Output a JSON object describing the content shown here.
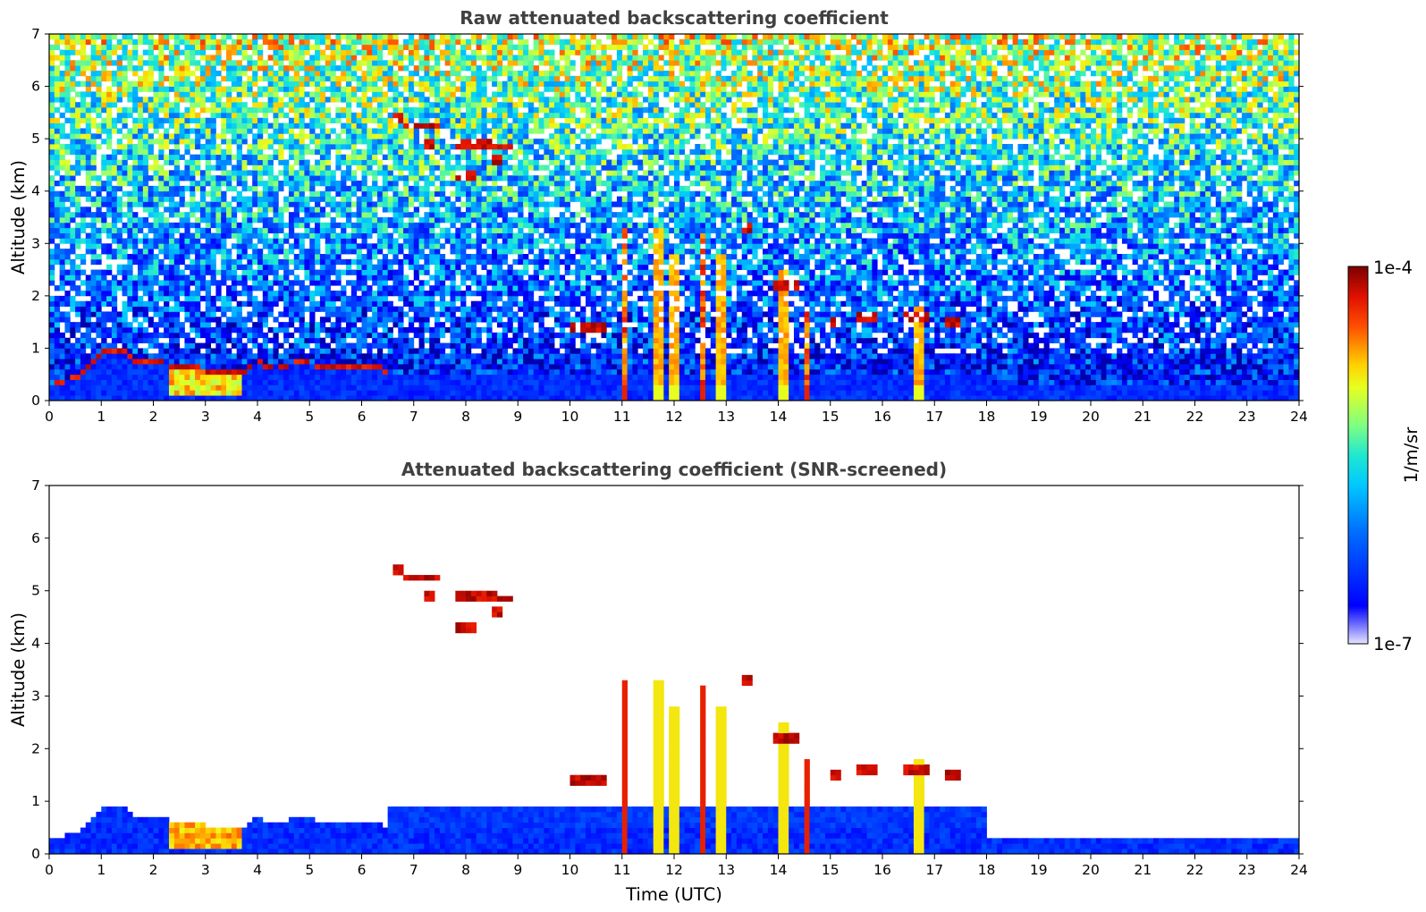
{
  "chart_data": [
    {
      "type": "heatmap",
      "title": "Raw attenuated backscattering coefficient",
      "xlabel": "",
      "ylabel": "Altitude (km)",
      "xlim": [
        0,
        24
      ],
      "ylim": [
        0,
        7
      ],
      "x_ticks": [
        "0",
        "1",
        "2",
        "3",
        "4",
        "5",
        "6",
        "7",
        "8",
        "9",
        "10",
        "11",
        "12",
        "13",
        "14",
        "15",
        "16",
        "17",
        "18",
        "19",
        "20",
        "21",
        "22",
        "23",
        "24"
      ],
      "y_ticks": [
        "0",
        "1",
        "2",
        "3",
        "4",
        "5",
        "6",
        "7"
      ],
      "screened": false,
      "features": {
        "boundary_layer_top": [
          [
            0,
            0.25
          ],
          [
            0.5,
            0.4
          ],
          [
            0.8,
            0.65
          ],
          [
            1.0,
            0.9
          ],
          [
            1.4,
            0.95
          ],
          [
            1.6,
            0.75
          ],
          [
            2.3,
            0.65
          ],
          [
            3.0,
            0.55
          ],
          [
            3.8,
            0.55
          ],
          [
            4.0,
            0.7
          ],
          [
            4.3,
            0.55
          ],
          [
            4.8,
            0.7
          ],
          [
            5.5,
            0.6
          ],
          [
            6.0,
            0.6
          ],
          [
            6.4,
            0.65
          ]
        ],
        "elevated_cloud_patches": [
          {
            "t_start": 6.6,
            "t_end": 6.75,
            "alt": 5.4
          },
          {
            "t_start": 6.8,
            "t_end": 7.5,
            "alt": 5.25
          },
          {
            "t_start": 7.2,
            "t_end": 7.4,
            "alt": 4.9
          },
          {
            "t_start": 7.8,
            "t_end": 8.6,
            "alt": 4.9
          },
          {
            "t_start": 8.6,
            "t_end": 8.9,
            "alt": 4.85
          },
          {
            "t_start": 8.5,
            "t_end": 8.7,
            "alt": 4.6
          },
          {
            "t_start": 7.8,
            "t_end": 8.2,
            "alt": 4.3
          }
        ],
        "convective_columns": [
          {
            "t": 11.05,
            "top": 3.3
          },
          {
            "t": 11.7,
            "top": 3.3
          },
          {
            "t": 12.0,
            "top": 2.8
          },
          {
            "t": 12.55,
            "top": 3.2
          },
          {
            "t": 12.9,
            "top": 2.8
          },
          {
            "t": 14.1,
            "top": 2.5
          },
          {
            "t": 14.55,
            "top": 1.8
          },
          {
            "t": 16.7,
            "top": 1.8
          }
        ],
        "mid_level_cloud_patches": [
          {
            "t_start": 10.0,
            "t_end": 10.7,
            "alt": 1.4
          },
          {
            "t_start": 13.3,
            "t_end": 13.5,
            "alt": 3.3
          },
          {
            "t_start": 13.9,
            "t_end": 14.4,
            "alt": 2.2
          },
          {
            "t_start": 15.0,
            "t_end": 15.2,
            "alt": 1.5
          },
          {
            "t_start": 15.5,
            "t_end": 15.9,
            "alt": 1.6
          },
          {
            "t_start": 16.4,
            "t_end": 16.9,
            "alt": 1.6
          },
          {
            "t_start": 17.2,
            "t_end": 17.5,
            "alt": 1.5
          }
        ]
      }
    },
    {
      "type": "heatmap",
      "title": "Attenuated backscattering coefficient (SNR-screened)",
      "xlabel": "Time (UTC)",
      "ylabel": "Altitude (km)",
      "xlim": [
        0,
        24
      ],
      "ylim": [
        0,
        7
      ],
      "x_ticks": [
        "0",
        "1",
        "2",
        "3",
        "4",
        "5",
        "6",
        "7",
        "8",
        "9",
        "10",
        "11",
        "12",
        "13",
        "14",
        "15",
        "16",
        "17",
        "18",
        "19",
        "20",
        "21",
        "22",
        "23",
        "24"
      ],
      "y_ticks": [
        "0",
        "1",
        "2",
        "3",
        "4",
        "5",
        "6",
        "7"
      ],
      "screened": true
    }
  ],
  "colorbar": {
    "max_label": "1e-4",
    "min_label": "1e-7",
    "unit_label": "1/m/sr",
    "log_min": -7,
    "log_max": -4,
    "colormap": [
      "#0000a8",
      "#0000ff",
      "#0080ff",
      "#00d8ff",
      "#40ffc0",
      "#a0ff60",
      "#ffff00",
      "#ffa000",
      "#ff2800",
      "#a00000",
      "#780000"
    ]
  }
}
